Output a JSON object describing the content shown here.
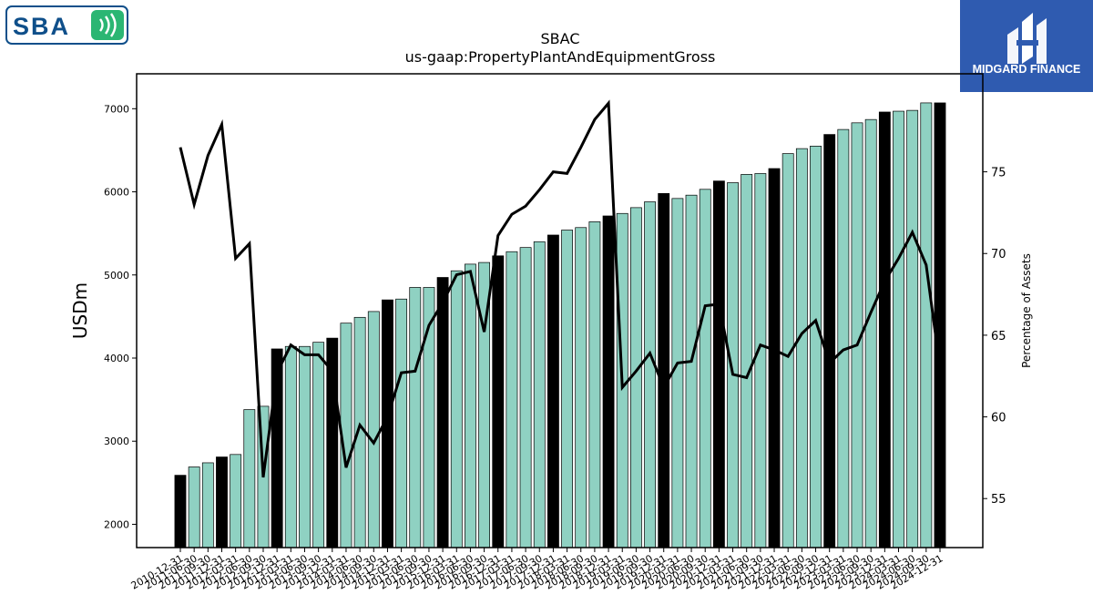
{
  "brand": {
    "left_logo_text": "SBA",
    "right_logo_text": "MIDGARD FINANCE",
    "left_logo_color": "#0f4f8a",
    "left_logo_accent": "#2bb673",
    "right_logo_bg": "#2f5bb0"
  },
  "chart_data": {
    "type": "bar",
    "title": "SBAC",
    "subtitle": "us-gaap:PropertyPlantAndEquipmentGross",
    "ylabel": "USDm",
    "y2label": "Percentage of Assets",
    "ylim": [
      1720,
      7420
    ],
    "y2lim": [
      52,
      81
    ],
    "yticks": [
      2000,
      3000,
      4000,
      5000,
      6000,
      7000
    ],
    "y2ticks": [
      55,
      60,
      65,
      70,
      75
    ],
    "colors": {
      "annual": "#000000",
      "quarterly": "#8fd1c2",
      "line": "#000000"
    },
    "categories": [
      "2010-12-31",
      "2011-06-30",
      "2011-09-30",
      "2011-12-31",
      "2012-03-31",
      "2012-06-30",
      "2012-09-30",
      "2012-12-31",
      "2013-03-31",
      "2013-06-30",
      "2013-09-30",
      "2013-12-31",
      "2014-03-31",
      "2014-06-30",
      "2014-09-30",
      "2014-12-31",
      "2015-03-31",
      "2015-06-30",
      "2015-09-30",
      "2015-12-31",
      "2016-03-31",
      "2016-06-30",
      "2016-09-30",
      "2016-12-31",
      "2017-03-31",
      "2017-06-30",
      "2017-09-30",
      "2017-12-31",
      "2018-03-31",
      "2018-06-30",
      "2018-09-30",
      "2018-12-31",
      "2019-03-31",
      "2019-06-30",
      "2019-09-30",
      "2019-12-31",
      "2020-03-31",
      "2020-06-30",
      "2020-09-30",
      "2020-12-31",
      "2021-03-31",
      "2021-06-30",
      "2021-09-30",
      "2021-12-31",
      "2022-03-31",
      "2022-06-30",
      "2022-09-30",
      "2022-12-31",
      "2023-03-31",
      "2023-06-30",
      "2023-09-30",
      "2023-12-31",
      "2024-03-31",
      "2024-06-30",
      "2024-09-30",
      "2024-12-31"
    ],
    "values": [
      2590,
      2690,
      2740,
      2810,
      2840,
      3380,
      3420,
      4110,
      4140,
      4140,
      4190,
      4240,
      4420,
      4490,
      4560,
      4700,
      4710,
      4850,
      4850,
      4970,
      5050,
      5130,
      5150,
      5230,
      5280,
      5330,
      5400,
      5480,
      5540,
      5570,
      5640,
      5710,
      5740,
      5810,
      5880,
      5980,
      5920,
      5960,
      6030,
      6130,
      6110,
      6210,
      6220,
      6280,
      6460,
      6520,
      6550,
      6690,
      6750,
      6830,
      6870,
      6960,
      6970,
      6980,
      7070,
      7070
    ],
    "annual_flags": [
      true,
      false,
      false,
      true,
      false,
      false,
      false,
      true,
      false,
      false,
      false,
      true,
      false,
      false,
      false,
      true,
      false,
      false,
      false,
      true,
      false,
      false,
      false,
      true,
      false,
      false,
      false,
      true,
      false,
      false,
      false,
      true,
      false,
      false,
      false,
      true,
      false,
      false,
      false,
      true,
      false,
      false,
      false,
      true,
      false,
      false,
      false,
      true,
      false,
      false,
      false,
      true,
      false,
      false,
      false,
      true
    ],
    "line_values": [
      76.5,
      73.0,
      76.0,
      77.9,
      69.7,
      70.6,
      56.3,
      62.7,
      64.4,
      63.8,
      63.8,
      62.8,
      56.9,
      59.5,
      58.4,
      60.0,
      62.7,
      62.8,
      65.6,
      67.0,
      68.7,
      68.9,
      65.2,
      71.1,
      72.4,
      72.9,
      73.9,
      75.0,
      74.9,
      76.5,
      78.2,
      79.2,
      61.8,
      62.8,
      63.9,
      61.8,
      63.3,
      63.4,
      66.8,
      66.9,
      62.6,
      62.4,
      64.4,
      64.1,
      63.7,
      65.1,
      65.9,
      63.3,
      64.1,
      64.4,
      66.4,
      68.3,
      69.7,
      71.3,
      69.3,
      63.0
    ]
  }
}
